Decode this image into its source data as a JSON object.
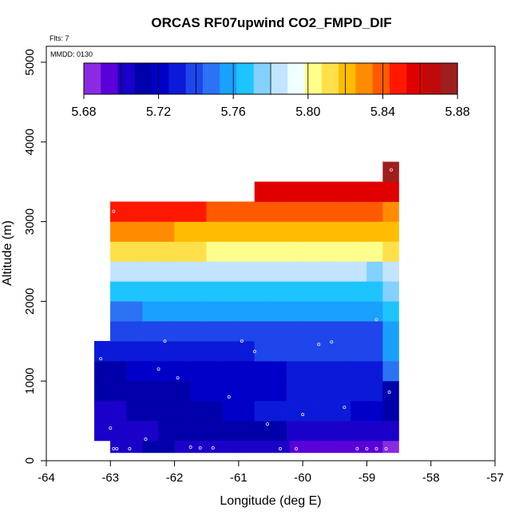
{
  "chart_data": {
    "type": "heatmap",
    "title": "ORCAS RF07upwind CO2_FMPD_DIF",
    "flights_label": "Flts: 7",
    "date_label": "MMDD: 0130",
    "xlabel": "Longitude (deg E)",
    "ylabel": "Altitude (m)",
    "xlim": [
      -64,
      -57
    ],
    "ylim": [
      0,
      5200
    ],
    "x_ticks": [
      -64,
      -63,
      -62,
      -61,
      -60,
      -59,
      -58,
      -57
    ],
    "y_ticks": [
      0,
      1000,
      2000,
      3000,
      4000,
      5000
    ],
    "colorbar": {
      "min": 5.68,
      "max": 5.88,
      "ticks": [
        "5.68",
        "5.72",
        "5.76",
        "5.80",
        "5.84",
        "5.88"
      ],
      "colors": [
        "#8a2be2",
        "#5a00d8",
        "#1a00c8",
        "#0000aa",
        "#0000c8",
        "#0a1ad8",
        "#1e46ea",
        "#2c72f4",
        "#1aa0ff",
        "#1ec4ff",
        "#84d0ff",
        "#c2e4ff",
        "#f0ffff",
        "#ffff8c",
        "#ffe04a",
        "#ffbc00",
        "#ff8c00",
        "#ff5a00",
        "#ff1800",
        "#e00000",
        "#be0a0a",
        "#a01e1e"
      ]
    },
    "rows": [
      {
        "y0": 100,
        "y1": 250,
        "cells": [
          [
            -63.0,
            -62.5,
            5.705
          ],
          [
            -62.5,
            -62.0,
            5.708
          ],
          [
            -62.0,
            -61.5,
            5.704
          ],
          [
            -61.5,
            -61.0,
            5.703
          ],
          [
            -61.0,
            -60.5,
            5.702
          ],
          [
            -60.5,
            -60.2,
            5.701
          ],
          [
            -60.2,
            -59.7,
            5.69
          ],
          [
            -59.7,
            -59.2,
            5.692
          ],
          [
            -59.2,
            -58.75,
            5.69
          ],
          [
            -58.75,
            -58.5,
            5.683
          ]
        ]
      },
      {
        "y0": 250,
        "y1": 500,
        "cells": [
          [
            -63.25,
            -62.75,
            5.707
          ],
          [
            -62.75,
            -62.25,
            5.706
          ],
          [
            -62.25,
            -61.75,
            5.708
          ],
          [
            -61.75,
            -61.25,
            5.712
          ],
          [
            -61.25,
            -60.75,
            5.714
          ],
          [
            -60.75,
            -60.25,
            5.713
          ],
          [
            -60.25,
            -59.75,
            5.704
          ],
          [
            -59.75,
            -59.25,
            5.705
          ],
          [
            -59.25,
            -58.75,
            5.706
          ],
          [
            -58.75,
            -58.5,
            5.7
          ]
        ]
      },
      {
        "y0": 500,
        "y1": 750,
        "cells": [
          [
            -63.25,
            -62.75,
            5.707
          ],
          [
            -62.75,
            -62.25,
            5.708
          ],
          [
            -62.25,
            -61.75,
            5.713
          ],
          [
            -61.75,
            -61.25,
            5.716
          ],
          [
            -61.25,
            -60.75,
            5.722
          ],
          [
            -60.75,
            -60.25,
            5.727
          ],
          [
            -60.25,
            -59.75,
            5.73
          ],
          [
            -59.75,
            -59.25,
            5.726
          ],
          [
            -59.25,
            -58.75,
            5.719
          ],
          [
            -58.75,
            -58.5,
            5.708
          ]
        ]
      },
      {
        "y0": 750,
        "y1": 1000,
        "cells": [
          [
            -63.25,
            -62.75,
            5.712
          ],
          [
            -62.75,
            -62.25,
            5.714
          ],
          [
            -62.25,
            -61.75,
            5.713
          ],
          [
            -61.75,
            -61.25,
            5.718
          ],
          [
            -61.25,
            -60.75,
            5.722
          ],
          [
            -60.75,
            -60.25,
            5.724
          ],
          [
            -60.25,
            -59.75,
            5.728
          ],
          [
            -59.75,
            -59.25,
            5.731
          ],
          [
            -59.25,
            -58.75,
            5.733
          ],
          [
            -58.75,
            -58.5,
            5.712
          ]
        ]
      },
      {
        "y0": 1000,
        "y1": 1250,
        "cells": [
          [
            -63.25,
            -62.75,
            5.716
          ],
          [
            -62.75,
            -62.25,
            5.719
          ],
          [
            -62.25,
            -61.75,
            5.722
          ],
          [
            -61.75,
            -61.25,
            5.717
          ],
          [
            -61.25,
            -60.75,
            5.72
          ],
          [
            -60.75,
            -60.25,
            5.725
          ],
          [
            -60.25,
            -59.75,
            5.728
          ],
          [
            -59.75,
            -59.25,
            5.73
          ],
          [
            -59.25,
            -58.75,
            5.733
          ],
          [
            -58.75,
            -58.5,
            5.745
          ]
        ]
      },
      {
        "y0": 1250,
        "y1": 1500,
        "cells": [
          [
            -63.25,
            -62.75,
            5.726
          ],
          [
            -62.75,
            -62.25,
            5.727
          ],
          [
            -62.25,
            -61.75,
            5.729
          ],
          [
            -61.75,
            -61.25,
            5.731
          ],
          [
            -61.25,
            -60.75,
            5.733
          ],
          [
            -60.75,
            -60.25,
            5.735
          ],
          [
            -60.25,
            -59.75,
            5.737
          ],
          [
            -59.75,
            -59.25,
            5.737
          ],
          [
            -59.25,
            -58.75,
            5.739
          ],
          [
            -58.75,
            -58.5,
            5.755
          ]
        ]
      },
      {
        "y0": 1500,
        "y1": 1750,
        "cells": [
          [
            -63.0,
            -62.5,
            5.736
          ],
          [
            -62.5,
            -62.0,
            5.737
          ],
          [
            -62.0,
            -61.5,
            5.738
          ],
          [
            -61.5,
            -61.0,
            5.739
          ],
          [
            -61.0,
            -60.5,
            5.74
          ],
          [
            -60.5,
            -60.0,
            5.741
          ],
          [
            -60.0,
            -59.5,
            5.742
          ],
          [
            -59.5,
            -59.0,
            5.742
          ],
          [
            -59.0,
            -58.75,
            5.743
          ],
          [
            -58.75,
            -58.5,
            5.76
          ]
        ]
      },
      {
        "y0": 1750,
        "y1": 2000,
        "cells": [
          [
            -63.0,
            -62.5,
            5.752
          ],
          [
            -62.5,
            -62.0,
            5.753
          ],
          [
            -62.0,
            -61.5,
            5.754
          ],
          [
            -61.5,
            -61.0,
            5.755
          ],
          [
            -61.0,
            -60.5,
            5.756
          ],
          [
            -60.5,
            -60.0,
            5.757
          ],
          [
            -60.0,
            -59.5,
            5.758
          ],
          [
            -59.5,
            -59.0,
            5.758
          ],
          [
            -59.0,
            -58.75,
            5.759
          ],
          [
            -58.75,
            -58.5,
            5.768
          ]
        ]
      },
      {
        "y0": 2000,
        "y1": 2250,
        "cells": [
          [
            -63.0,
            -62.5,
            5.77
          ],
          [
            -62.5,
            -62.0,
            5.77
          ],
          [
            -62.0,
            -61.5,
            5.769
          ],
          [
            -61.5,
            -61.0,
            5.768
          ],
          [
            -61.0,
            -60.5,
            5.767
          ],
          [
            -60.5,
            -60.0,
            5.766
          ],
          [
            -60.0,
            -59.5,
            5.765
          ],
          [
            -59.5,
            -59.0,
            5.764
          ],
          [
            -59.0,
            -58.75,
            5.762
          ],
          [
            -58.75,
            -58.5,
            5.772
          ]
        ]
      },
      {
        "y0": 2250,
        "y1": 2500,
        "cells": [
          [
            -63.0,
            -62.5,
            5.786
          ],
          [
            -62.5,
            -62.0,
            5.786
          ],
          [
            -62.0,
            -61.5,
            5.785
          ],
          [
            -61.5,
            -61.0,
            5.785
          ],
          [
            -61.0,
            -60.5,
            5.784
          ],
          [
            -60.5,
            -60.0,
            5.783
          ],
          [
            -60.0,
            -59.5,
            5.782
          ],
          [
            -59.5,
            -59.0,
            5.78
          ],
          [
            -59.0,
            -58.75,
            5.779
          ],
          [
            -58.75,
            -58.5,
            5.789
          ]
        ]
      },
      {
        "y0": 2500,
        "y1": 2750,
        "cells": [
          [
            -63.0,
            -62.5,
            5.816
          ],
          [
            -62.5,
            -62.0,
            5.812
          ],
          [
            -62.0,
            -61.5,
            5.809
          ],
          [
            -61.5,
            -61.0,
            5.806
          ],
          [
            -61.0,
            -60.5,
            5.805
          ],
          [
            -60.5,
            -60.0,
            5.804
          ],
          [
            -60.0,
            -59.5,
            5.803
          ],
          [
            -59.5,
            -59.0,
            5.804
          ],
          [
            -59.0,
            -58.75,
            5.805
          ],
          [
            -58.75,
            -58.5,
            5.809
          ]
        ]
      },
      {
        "y0": 2750,
        "y1": 3000,
        "cells": [
          [
            -63.0,
            -62.5,
            5.829
          ],
          [
            -62.5,
            -62.0,
            5.826
          ],
          [
            -62.0,
            -61.5,
            5.825
          ],
          [
            -61.5,
            -61.0,
            5.824
          ],
          [
            -61.0,
            -60.5,
            5.823
          ],
          [
            -60.5,
            -60.0,
            5.822
          ],
          [
            -60.0,
            -59.5,
            5.822
          ],
          [
            -59.5,
            -59.0,
            5.821
          ],
          [
            -59.0,
            -58.75,
            5.82
          ],
          [
            -58.75,
            -58.5,
            5.821
          ]
        ]
      },
      {
        "y0": 3000,
        "y1": 3250,
        "cells": [
          [
            -63.0,
            -62.5,
            5.849
          ],
          [
            -62.5,
            -62.0,
            5.846
          ],
          [
            -62.0,
            -61.5,
            5.845
          ],
          [
            -61.5,
            -61.0,
            5.843
          ],
          [
            -61.0,
            -60.5,
            5.842
          ],
          [
            -60.5,
            -60.0,
            5.841
          ],
          [
            -60.0,
            -59.5,
            5.84
          ],
          [
            -59.5,
            -59.0,
            5.838
          ],
          [
            -59.0,
            -58.75,
            5.837
          ],
          [
            -58.75,
            -58.5,
            5.834
          ]
        ]
      },
      {
        "y0": 3250,
        "y1": 3500,
        "cells": [
          [
            -60.75,
            -60.25,
            5.86
          ],
          [
            -60.25,
            -59.75,
            5.858
          ],
          [
            -59.75,
            -59.25,
            5.857
          ],
          [
            -59.25,
            -58.75,
            5.857
          ],
          [
            -58.75,
            -58.5,
            5.856
          ]
        ]
      },
      {
        "y0": 3500,
        "y1": 3750,
        "cells": [
          [
            -58.75,
            -58.5,
            5.878
          ]
        ]
      }
    ],
    "points": [
      [
        -62.95,
        150
      ],
      [
        -62.9,
        150
      ],
      [
        -62.7,
        150
      ],
      [
        -62.45,
        270
      ],
      [
        -63.0,
        410
      ],
      [
        -63.15,
        1280
      ],
      [
        -62.25,
        1150
      ],
      [
        -62.15,
        1500
      ],
      [
        -61.95,
        1040
      ],
      [
        -61.75,
        170
      ],
      [
        -61.6,
        160
      ],
      [
        -61.4,
        160
      ],
      [
        -61.15,
        800
      ],
      [
        -60.95,
        1500
      ],
      [
        -60.75,
        1370
      ],
      [
        -60.55,
        460
      ],
      [
        -60.35,
        150
      ],
      [
        -60.1,
        150
      ],
      [
        -60.0,
        580
      ],
      [
        -59.75,
        1460
      ],
      [
        -59.55,
        1490
      ],
      [
        -59.35,
        670
      ],
      [
        -59.15,
        150
      ],
      [
        -59.0,
        150
      ],
      [
        -58.85,
        150
      ],
      [
        -58.85,
        1770
      ],
      [
        -58.7,
        150
      ],
      [
        -58.65,
        860
      ],
      [
        -58.62,
        3650
      ],
      [
        -62.95,
        3130
      ]
    ]
  }
}
